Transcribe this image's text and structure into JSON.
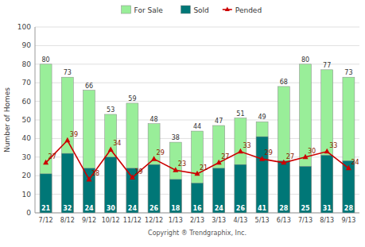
{
  "chart_data": {
    "type": "bar",
    "categories": [
      "7/12",
      "8/12",
      "9/12",
      "10/12",
      "11/12",
      "12/12",
      "1/13",
      "2/13",
      "3/13",
      "4/13",
      "5/13",
      "6/13",
      "7/13",
      "8/13",
      "9/13"
    ],
    "series": [
      {
        "name": "For Sale",
        "type": "bar",
        "color": "#99ee99",
        "values": [
          80,
          73,
          66,
          53,
          59,
          48,
          38,
          44,
          47,
          51,
          49,
          68,
          80,
          77,
          73
        ]
      },
      {
        "name": "Sold",
        "type": "bar",
        "color": "#007777",
        "values": [
          21,
          32,
          24,
          30,
          24,
          26,
          18,
          16,
          24,
          26,
          41,
          28,
          25,
          31,
          28
        ]
      },
      {
        "name": "Pended",
        "type": "line",
        "color": "#cc0000",
        "marker": "triangle",
        "values": [
          27,
          39,
          18,
          34,
          19,
          29,
          23,
          21,
          27,
          33,
          29,
          27,
          30,
          33,
          24
        ]
      }
    ],
    "ylabel": "Number of Homes",
    "xlabel": "Copyright ® Trendgraphix, Inc.",
    "ylim": [
      0,
      100
    ],
    "yticks": [
      0,
      10,
      20,
      30,
      40,
      50,
      60,
      70,
      80,
      90,
      100
    ],
    "grid": true,
    "legend": "top",
    "stacked": false,
    "data_labels": true
  }
}
